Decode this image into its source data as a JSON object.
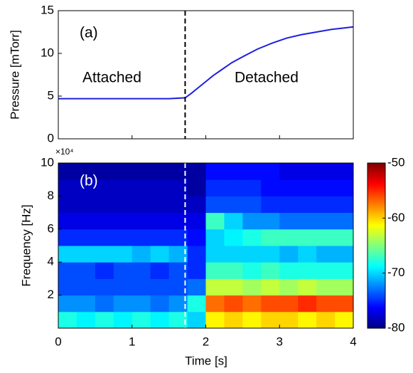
{
  "chart_data": [
    {
      "type": "line",
      "ylabel": "Pressure [mTorr]",
      "annotations": [
        "(a)",
        "Attached",
        "Detached"
      ],
      "x": [
        0,
        0.5,
        1,
        1.5,
        1.72,
        1.8,
        1.9,
        2.0,
        2.1,
        2.2,
        2.35,
        2.5,
        2.7,
        2.9,
        3.1,
        3.3,
        3.5,
        3.7,
        3.9,
        4.0
      ],
      "values": [
        4.7,
        4.7,
        4.7,
        4.7,
        4.8,
        5.3,
        6.0,
        6.7,
        7.4,
        8.0,
        8.9,
        9.6,
        10.5,
        11.2,
        11.8,
        12.2,
        12.5,
        12.8,
        13.0,
        13.1
      ],
      "color": "#1f1fe0",
      "xlim": [
        0,
        4
      ],
      "ylim": [
        0,
        15
      ],
      "yticks": [
        0,
        5,
        10,
        15
      ],
      "vline": 1.72,
      "vline_color": "#000000"
    },
    {
      "type": "heatmap",
      "xlabel": "Time [s]",
      "ylabel": "Frequency [Hz]",
      "y_multiplier": "×10⁴",
      "annotations": [
        "(b)"
      ],
      "xlim": [
        0,
        4
      ],
      "ylim": [
        0,
        10
      ],
      "xticks": [
        0,
        1,
        2,
        3,
        4
      ],
      "yticks": [
        2,
        4,
        6,
        8,
        10
      ],
      "x_bins": [
        0,
        0.25,
        0.5,
        0.75,
        1,
        1.25,
        1.5,
        1.75,
        2,
        2.25,
        2.5,
        2.75,
        3,
        3.25,
        3.5,
        3.75,
        4
      ],
      "y_bins": [
        0,
        1,
        2,
        3,
        4,
        5,
        6,
        7,
        8,
        9,
        10
      ],
      "z": [
        [
          -68,
          -69,
          -68,
          -69,
          -68,
          -69,
          -68,
          -70,
          -61,
          -60,
          -61,
          -60,
          -60,
          -61,
          -60,
          -61
        ],
        [
          -72,
          -72,
          -73,
          -72,
          -72,
          -73,
          -72,
          -68,
          -57,
          -56,
          -57,
          -56,
          -56,
          -55,
          -56,
          -56
        ],
        [
          -74,
          -74,
          -74,
          -74,
          -74,
          -74,
          -74,
          -73,
          -63,
          -63,
          -64,
          -63,
          -64,
          -63,
          -64,
          -64
        ],
        [
          -74,
          -74,
          -75,
          -74,
          -74,
          -75,
          -74,
          -75,
          -67,
          -67,
          -68,
          -67,
          -68,
          -68,
          -68,
          -68
        ],
        [
          -70,
          -70,
          -70,
          -70,
          -71,
          -70,
          -71,
          -75,
          -70,
          -70,
          -70,
          -70,
          -71,
          -70,
          -71,
          -71
        ],
        [
          -75,
          -75,
          -75,
          -75,
          -75,
          -75,
          -75,
          -76,
          -70,
          -69,
          -68,
          -67,
          -67,
          -67,
          -67,
          -67
        ],
        [
          -77,
          -77,
          -77,
          -77,
          -77,
          -77,
          -77,
          -77,
          -67,
          -70,
          -72,
          -72,
          -73,
          -73,
          -73,
          -73
        ],
        [
          -78,
          -78,
          -78,
          -78,
          -78,
          -78,
          -78,
          -78,
          -74,
          -74,
          -74,
          -75,
          -75,
          -75,
          -75,
          -75
        ],
        [
          -78,
          -78,
          -78,
          -78,
          -78,
          -78,
          -78,
          -79,
          -75,
          -75,
          -75,
          -76,
          -76,
          -76,
          -76,
          -76
        ],
        [
          -79,
          -79,
          -79,
          -79,
          -79,
          -79,
          -79,
          -79,
          -76,
          -76,
          -76,
          -76,
          -77,
          -77,
          -77,
          -77
        ]
      ],
      "colormap": "jet",
      "clim": [
        -80,
        -50
      ],
      "cticks": [
        -50,
        -60,
        -70,
        -80
      ],
      "vline": 1.72,
      "vline_color": "#ffffff"
    }
  ]
}
